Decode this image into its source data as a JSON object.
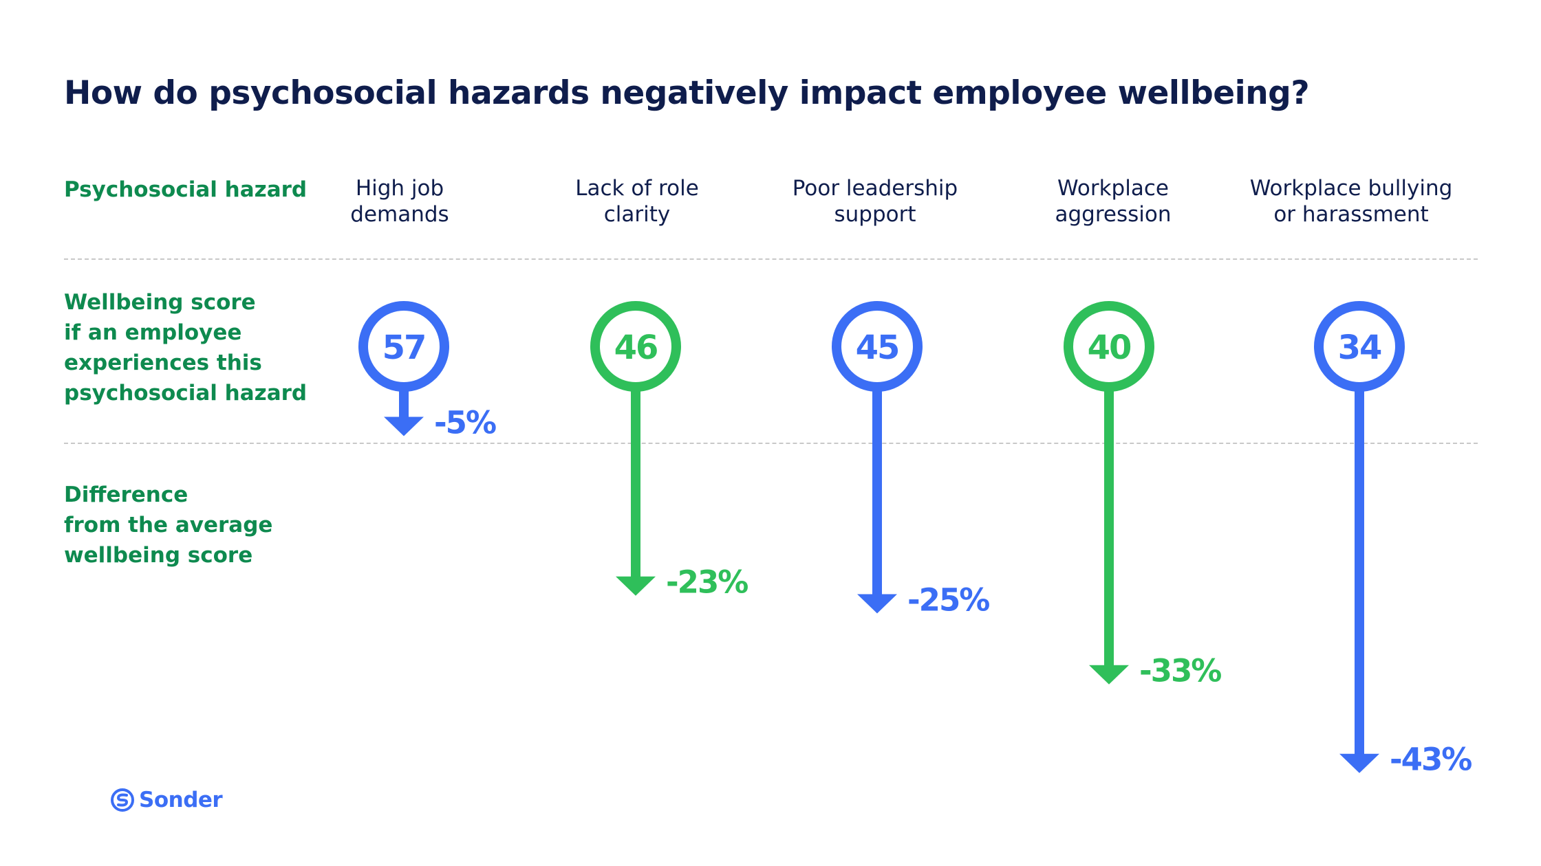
{
  "title": "How do psychosocial hazards negatively impact employee wellbeing?",
  "row_labels": {
    "hazard": [
      "Psychosocial hazard"
    ],
    "score": [
      "Wellbeing score",
      "if an employee",
      "experiences this",
      "psychosocial hazard"
    ],
    "difference": [
      "Difference",
      "from the average",
      "wellbeing score"
    ]
  },
  "brand": {
    "name": "Sonder",
    "logo_icon": "sonder-s-icon"
  },
  "colors": {
    "blue": "#3b6ef5",
    "green": "#2fbf5a",
    "label_green": "#0e8a4f",
    "title_navy": "#0f1d4c",
    "divider": "#c8c8c8"
  },
  "chart_data": {
    "type": "bar",
    "title": "How do psychosocial hazards negatively impact employee wellbeing?",
    "categories": [
      [
        "High job",
        "demands"
      ],
      [
        "Lack of role",
        "clarity"
      ],
      [
        "Poor leadership",
        "support"
      ],
      [
        "Workplace",
        "aggression"
      ],
      [
        "Workplace bullying",
        "or harassment"
      ]
    ],
    "series": [
      {
        "name": "Wellbeing score if an employee experiences this psychosocial hazard",
        "values": [
          57,
          46,
          45,
          40,
          34
        ]
      },
      {
        "name": "Difference from the average wellbeing score",
        "values": [
          -5,
          -23,
          -25,
          -33,
          -43
        ],
        "unit": "%"
      }
    ],
    "value_labels": [
      "57",
      "46",
      "45",
      "40",
      "34"
    ],
    "diff_labels": [
      "-5%",
      "-23%",
      "-25%",
      "-33%",
      "-43%"
    ],
    "marker_colors": [
      "blue",
      "green",
      "blue",
      "green",
      "blue"
    ],
    "grid": false,
    "legend": "none"
  }
}
